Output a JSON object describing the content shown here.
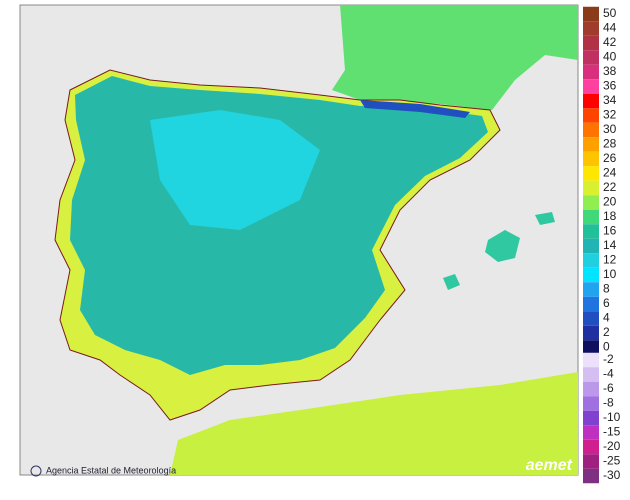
{
  "legend": {
    "positive": [
      {
        "value": 50,
        "color": "#8b3a1a"
      },
      {
        "value": 44,
        "color": "#a03c2c"
      },
      {
        "value": 42,
        "color": "#b03244"
      },
      {
        "value": 40,
        "color": "#c03060"
      },
      {
        "value": 38,
        "color": "#d8307c"
      },
      {
        "value": 36,
        "color": "#ff40a0"
      },
      {
        "value": 34,
        "color": "#ff0000"
      },
      {
        "value": 32,
        "color": "#ff4400"
      },
      {
        "value": 30,
        "color": "#ff7400"
      },
      {
        "value": 28,
        "color": "#ffa000"
      },
      {
        "value": 26,
        "color": "#ffc400"
      },
      {
        "value": 24,
        "color": "#ffe600"
      },
      {
        "value": 22,
        "color": "#d8f030"
      },
      {
        "value": 20,
        "color": "#90ee50"
      },
      {
        "value": 18,
        "color": "#40d878"
      },
      {
        "value": 16,
        "color": "#20c098"
      },
      {
        "value": 14,
        "color": "#20b4b4"
      },
      {
        "value": 12,
        "color": "#20d0e0"
      },
      {
        "value": 10,
        "color": "#00e4ff"
      },
      {
        "value": 8,
        "color": "#20a4f0"
      },
      {
        "value": 6,
        "color": "#2074e0"
      },
      {
        "value": 4,
        "color": "#2050c0"
      },
      {
        "value": 2,
        "color": "#2030a0"
      },
      {
        "value": 0,
        "color": "#101060"
      }
    ],
    "negative": [
      {
        "value": -2,
        "color": "#ece0fa"
      },
      {
        "value": -4,
        "color": "#d4bef2"
      },
      {
        "value": -6,
        "color": "#bc98ea"
      },
      {
        "value": -8,
        "color": "#a070e0"
      },
      {
        "value": -10,
        "color": "#8040d0"
      },
      {
        "value": -15,
        "color": "#c030c0"
      },
      {
        "value": -20,
        "color": "#d02090"
      },
      {
        "value": -25,
        "color": "#a02080"
      },
      {
        "value": -30,
        "color": "#803080"
      }
    ]
  },
  "footer": {
    "agency": "Agencia Estatal de Meteorología",
    "logo": "aemet"
  }
}
